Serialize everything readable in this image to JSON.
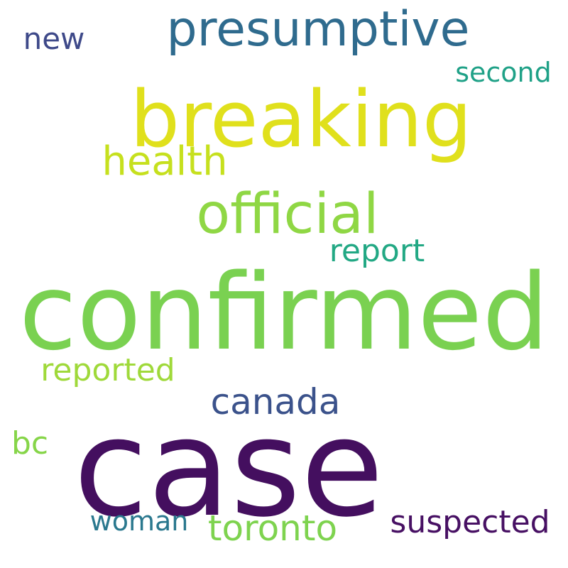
{
  "words": {
    "confirmed": {
      "text": "confirmed",
      "color": "#7ad151"
    },
    "case": {
      "text": "case",
      "color": "#440f5f"
    },
    "breaking": {
      "text": "breaking",
      "color": "#e0e01c"
    },
    "presumptive": {
      "text": "presumptive",
      "color": "#2f6b8e"
    },
    "official": {
      "text": "official",
      "color": "#8fd744"
    },
    "health": {
      "text": "health",
      "color": "#c6e01e"
    },
    "canada": {
      "text": "canada",
      "color": "#3b528b"
    },
    "reported": {
      "text": "reported",
      "color": "#9fd93a"
    },
    "toronto": {
      "text": "toronto",
      "color": "#7ed34f"
    },
    "suspected": {
      "text": "suspected",
      "color": "#471063"
    },
    "report": {
      "text": "report",
      "color": "#22a884"
    },
    "new": {
      "text": "new",
      "color": "#3e4989"
    },
    "second": {
      "text": "second",
      "color": "#1fa187"
    },
    "bc": {
      "text": "bc",
      "color": "#86d549"
    },
    "woman": {
      "text": "woman",
      "color": "#2a788e"
    }
  }
}
